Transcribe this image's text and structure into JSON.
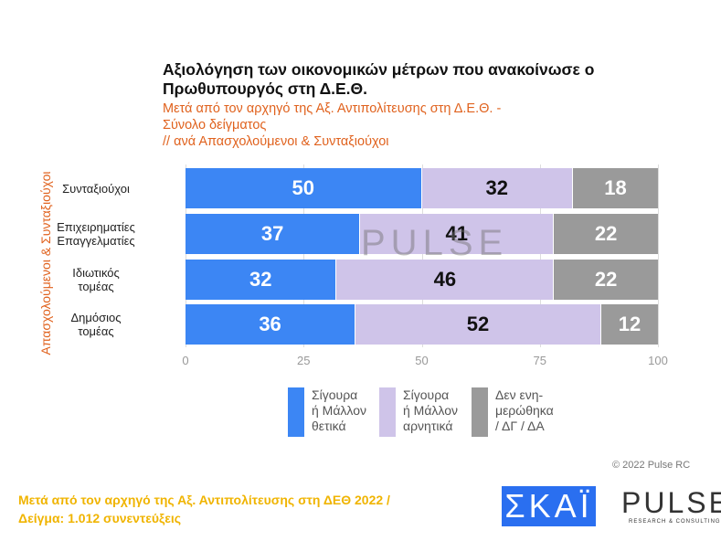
{
  "title": "Αξιολόγηση των οικονομικών μέτρων που ανακοίνωσε ο Πρωθυπουργός στη Δ.Ε.Θ.",
  "subtitle": "Μετά από τον αρχηγό της Αξ. Αντιπολίτευσης στη Δ.Ε.Θ. -\nΣύνολο δείγματος\n // ανά Απασχολούμενοι & Συνταξιούχοι",
  "chart_data": {
    "type": "bar",
    "stacked": true,
    "orientation": "horizontal",
    "ylabel": "Απασχολούμενοι & Συνταξιούχοι",
    "categories": [
      "Συνταξιούχοι",
      "Επιχειρηματίες\nΕπαγγελματίες",
      "Ιδιωτικός\nτομέας",
      "Δημόσιος\nτομέας"
    ],
    "series": [
      {
        "name": "Σίγουρα\nή Μάλλον\nθετικά",
        "color": "#3c86f4",
        "text": "#ffffff",
        "values": [
          50,
          37,
          32,
          36
        ]
      },
      {
        "name": "Σίγουρα\nή Μάλλον\nαρνητικά",
        "color": "#cfc4e9",
        "text": "#111111",
        "values": [
          32,
          41,
          46,
          52
        ]
      },
      {
        "name": "Δεν ενη-\nμερώθηκα\n/ ΔΓ / ΔΑ",
        "color": "#9a9a9a",
        "text": "#ffffff",
        "values": [
          18,
          22,
          22,
          12
        ]
      }
    ],
    "xlim": [
      0,
      100
    ],
    "xticks": [
      "0",
      "25",
      "50",
      "75",
      "100"
    ],
    "legend": "bottom"
  },
  "watermark": "PULSE",
  "copyright": "© 2022 Pulse RC",
  "footer": "Μετά από τον αρχηγό της Αξ. Αντιπολίτευσης στη ΔΕΘ  2022  /\nΔείγμα:  1.012 συνεντεύξεις",
  "logos": {
    "skai": "ΣΚΑΪ",
    "pulse": "PULSE",
    "pulse_sub": "RESEARCH & CONSULTING"
  }
}
